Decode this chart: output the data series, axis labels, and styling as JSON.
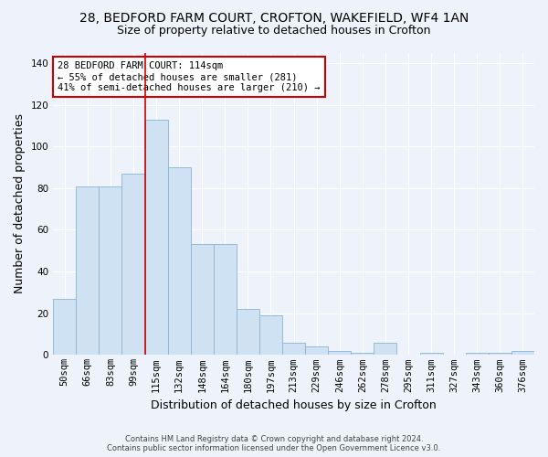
{
  "title_line1": "28, BEDFORD FARM COURT, CROFTON, WAKEFIELD, WF4 1AN",
  "title_line2": "Size of property relative to detached houses in Crofton",
  "xlabel": "Distribution of detached houses by size in Crofton",
  "ylabel": "Number of detached properties",
  "categories": [
    "50sqm",
    "66sqm",
    "83sqm",
    "99sqm",
    "115sqm",
    "132sqm",
    "148sqm",
    "164sqm",
    "180sqm",
    "197sqm",
    "213sqm",
    "229sqm",
    "246sqm",
    "262sqm",
    "278sqm",
    "295sqm",
    "311sqm",
    "327sqm",
    "343sqm",
    "360sqm",
    "376sqm"
  ],
  "values": [
    27,
    81,
    81,
    87,
    113,
    90,
    53,
    53,
    22,
    19,
    6,
    4,
    2,
    1,
    6,
    0,
    1,
    0,
    1,
    1,
    2
  ],
  "bar_color": "#cfe2f3",
  "bar_edge_color": "#8ab4d4",
  "vline_color": "#cc0000",
  "vline_x_index": 4,
  "ylim": [
    0,
    145
  ],
  "yticks": [
    0,
    20,
    40,
    60,
    80,
    100,
    120,
    140
  ],
  "annotation_text": "28 BEDFORD FARM COURT: 114sqm\n← 55% of detached houses are smaller (281)\n41% of semi-detached houses are larger (210) →",
  "annotation_box_color": "#ffffff",
  "annotation_box_edge": "#cc0000",
  "footer_line1": "Contains HM Land Registry data © Crown copyright and database right 2024.",
  "footer_line2": "Contains public sector information licensed under the Open Government Licence v3.0.",
  "bg_color": "#eef2fa",
  "plot_bg_color": "#eef2fa",
  "grid_color": "#ffffff",
  "title_fontsize": 10,
  "subtitle_fontsize": 9,
  "tick_fontsize": 7.5,
  "ylabel_fontsize": 9,
  "xlabel_fontsize": 9,
  "footer_fontsize": 6,
  "annotation_fontsize": 7.5
}
